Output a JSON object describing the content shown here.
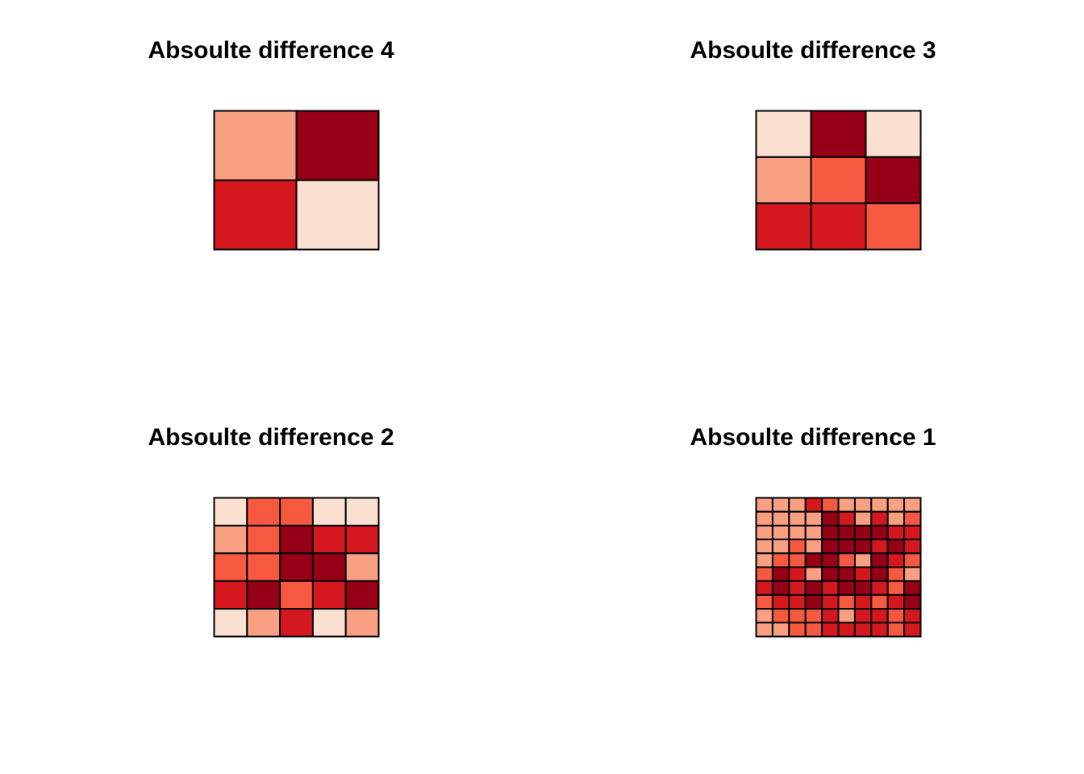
{
  "palette": [
    "#FCE0D2",
    "#F9A083",
    "#F75940",
    "#D5181E",
    "#960016"
  ],
  "chart_data": [
    {
      "type": "heatmap",
      "title": "Absoulte difference 4",
      "rows": 2,
      "cols": 2,
      "values": [
        [
          1,
          4
        ],
        [
          3,
          0
        ]
      ]
    },
    {
      "type": "heatmap",
      "title": "Absoulte difference 3",
      "rows": 3,
      "cols": 3,
      "values": [
        [
          0,
          4,
          0
        ],
        [
          1,
          2,
          4
        ],
        [
          3,
          3,
          2
        ]
      ]
    },
    {
      "type": "heatmap",
      "title": "Absoulte difference 2",
      "rows": 5,
      "cols": 5,
      "values": [
        [
          0,
          2,
          2,
          0,
          0
        ],
        [
          1,
          2,
          4,
          3,
          3
        ],
        [
          2,
          2,
          4,
          4,
          1
        ],
        [
          3,
          4,
          2,
          3,
          4
        ],
        [
          0,
          1,
          3,
          0,
          1
        ]
      ]
    },
    {
      "type": "heatmap",
      "title": "Absoulte difference 1",
      "rows": 10,
      "cols": 10,
      "values": [
        [
          1,
          1,
          1,
          3,
          2,
          1,
          1,
          1,
          1,
          1
        ],
        [
          1,
          1,
          1,
          1,
          4,
          3,
          1,
          3,
          1,
          2
        ],
        [
          1,
          1,
          1,
          1,
          4,
          4,
          4,
          4,
          3,
          3
        ],
        [
          1,
          1,
          2,
          1,
          4,
          4,
          4,
          3,
          4,
          3
        ],
        [
          1,
          2,
          2,
          4,
          4,
          2,
          1,
          4,
          3,
          2
        ],
        [
          2,
          4,
          3,
          1,
          4,
          4,
          3,
          4,
          2,
          1
        ],
        [
          3,
          4,
          3,
          4,
          3,
          4,
          4,
          3,
          2,
          4
        ],
        [
          2,
          3,
          3,
          4,
          3,
          2,
          3,
          2,
          3,
          4
        ],
        [
          1,
          2,
          2,
          2,
          3,
          1,
          3,
          3,
          2,
          3
        ],
        [
          1,
          1,
          2,
          2,
          3,
          3,
          3,
          3,
          2,
          3
        ]
      ]
    }
  ]
}
